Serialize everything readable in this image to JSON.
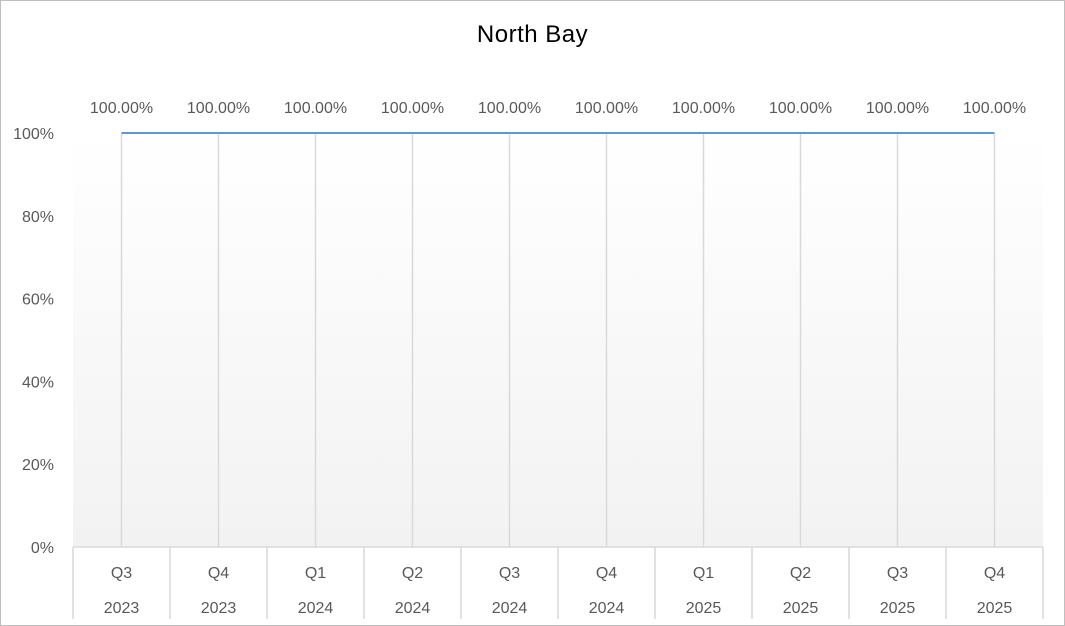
{
  "chart_data": {
    "type": "line",
    "title": "North Bay",
    "categories": [
      {
        "quarter": "Q3",
        "year": "2023"
      },
      {
        "quarter": "Q4",
        "year": "2023"
      },
      {
        "quarter": "Q1",
        "year": "2024"
      },
      {
        "quarter": "Q2",
        "year": "2024"
      },
      {
        "quarter": "Q3",
        "year": "2024"
      },
      {
        "quarter": "Q4",
        "year": "2024"
      },
      {
        "quarter": "Q1",
        "year": "2025"
      },
      {
        "quarter": "Q2",
        "year": "2025"
      },
      {
        "quarter": "Q3",
        "year": "2025"
      },
      {
        "quarter": "Q4",
        "year": "2025"
      }
    ],
    "series": [
      {
        "values": [
          100,
          100,
          100,
          100,
          100,
          100,
          100,
          100,
          100,
          100
        ],
        "data_labels": [
          "100.00%",
          "100.00%",
          "100.00%",
          "100.00%",
          "100.00%",
          "100.00%",
          "100.00%",
          "100.00%",
          "100.00%",
          "100.00%"
        ],
        "color": "#5b9bd5"
      }
    ],
    "y_ticks": [
      {
        "value": 0,
        "label": "0%"
      },
      {
        "value": 20,
        "label": "20%"
      },
      {
        "value": 40,
        "label": "40%"
      },
      {
        "value": 60,
        "label": "60%"
      },
      {
        "value": 80,
        "label": "80%"
      },
      {
        "value": 100,
        "label": "100%"
      }
    ],
    "ylim": [
      0,
      100
    ],
    "xlabel": "",
    "ylabel": "",
    "grid": "vertical",
    "legend": "none",
    "colors": {
      "line": "#5b9bd5",
      "grid": "#d9d9d9",
      "axis_text": "#595959",
      "plot_gradient_top": "#ffffff",
      "plot_gradient_bottom": "#f2f2f2"
    }
  }
}
